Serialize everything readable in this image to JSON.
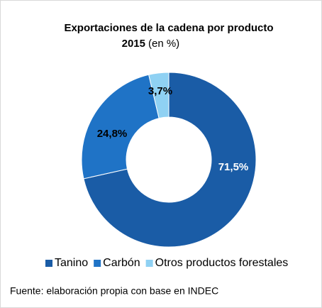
{
  "chart_data": {
    "type": "donut",
    "title": "Exportaciones de la cadena por producto",
    "subtitle": "2015",
    "unit_note": "(en %)",
    "categories": [
      "Tanino",
      "Carbón",
      "Otros productos forestales"
    ],
    "values": [
      71.5,
      24.8,
      3.7
    ],
    "value_labels": [
      "71,5%",
      "24,8%",
      "3,7%"
    ],
    "colors": [
      "#1a5ca6",
      "#1f73c6",
      "#8fd1f3"
    ],
    "legend": "bottom",
    "source": "Fuente: elaboración propia con base en INDEC"
  }
}
